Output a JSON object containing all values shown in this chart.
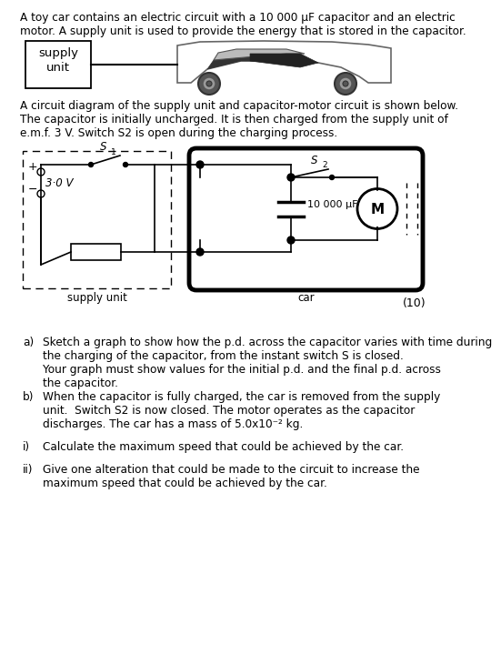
{
  "bg_color": "#ffffff",
  "text_color": "#000000",
  "title_text": "A toy car contains an electric circuit with a 10 000 μF capacitor and an electric\nmotor. A supply unit is used to provide the energy that is stored in the capacitor.",
  "circuit_desc": "A circuit diagram of the supply unit and capacitor-motor circuit is shown below.\nThe capacitor is initially uncharged. It is then charged from the supply unit of\ne.m.f. 3 V. Switch S2 is open during the charging process.",
  "marks": "(10)",
  "supply_box_label_1": "supply",
  "supply_box_label_2": "unit",
  "capacitor_label": "10 000 μF",
  "voltage_label": "3·0 V",
  "switch1_label": "S",
  "switch1_sub": "1",
  "switch2_label": "S",
  "switch2_sub": "2",
  "motor_label": "M",
  "supply_unit_label": "supply unit",
  "car_label": "car",
  "qa_label": "a)",
  "qa_text": "Sketch a graph to show how the p.d. across the capacitor varies with time during\nthe charging of the capacitor, from the instant switch S is closed.\nYour graph must show values for the initial p.d. and the final p.d. across\nthe capacitor.",
  "qb_label": "b)",
  "qb_text": "When the capacitor is fully charged, the car is removed from the supply\nunit.  Switch S2 is now closed. The motor operates as the capacitor\ndischarges. The car has a mass of 5.0x10⁻² kg.",
  "qi_label": "i)",
  "qi_text": "Calculate the maximum speed that could be achieved by the car.",
  "qii_label": "ii)",
  "qii_text": "Give one alteration that could be made to the circuit to increase the\nmaximum speed that could be achieved by the car."
}
